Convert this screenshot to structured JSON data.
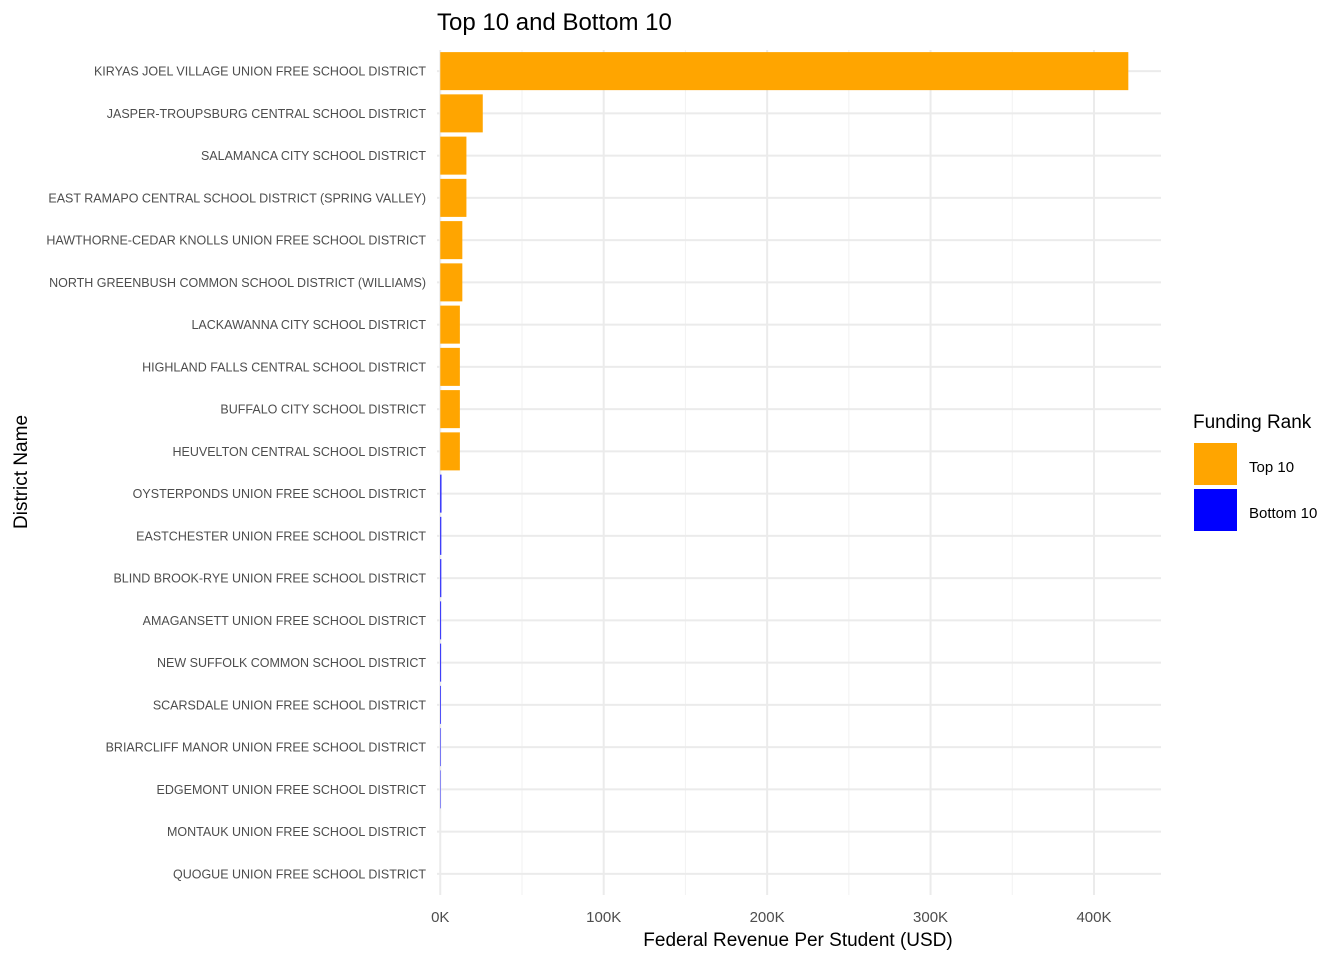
{
  "chart_data": {
    "type": "bar",
    "orientation": "horizontal",
    "title": "Top 10 and Bottom 10",
    "xlabel": "Federal Revenue Per Student (USD)",
    "ylabel": "District Name",
    "xlim": [
      -2000,
      441000
    ],
    "x_ticks": [
      0,
      100000,
      200000,
      300000,
      400000
    ],
    "x_tick_labels": [
      "0K",
      "100K",
      "200K",
      "300K",
      "400K"
    ],
    "grid": true,
    "legend": {
      "title": "Funding Rank",
      "position": "right",
      "entries": [
        {
          "label": "Top 10",
          "color": "#FFA500"
        },
        {
          "label": "Bottom 10",
          "color": "#0000FF"
        }
      ]
    },
    "categories": [
      "KIRYAS JOEL VILLAGE UNION FREE SCHOOL DISTRICT",
      "JASPER-TROUPSBURG CENTRAL SCHOOL DISTRICT",
      "SALAMANCA CITY SCHOOL DISTRICT",
      "EAST RAMAPO CENTRAL SCHOOL DISTRICT (SPRING VALLEY)",
      "HAWTHORNE-CEDAR KNOLLS UNION FREE SCHOOL DISTRICT",
      "NORTH GREENBUSH COMMON SCHOOL DISTRICT (WILLIAMS)",
      "LACKAWANNA CITY SCHOOL DISTRICT",
      "HIGHLAND FALLS CENTRAL SCHOOL DISTRICT",
      "BUFFALO CITY SCHOOL DISTRICT",
      "HEUVELTON CENTRAL SCHOOL DISTRICT",
      "OYSTERPONDS UNION FREE SCHOOL DISTRICT",
      "EASTCHESTER UNION FREE SCHOOL DISTRICT",
      "BLIND BROOK-RYE UNION FREE SCHOOL DISTRICT",
      "AMAGANSETT UNION FREE SCHOOL DISTRICT",
      "NEW SUFFOLK COMMON SCHOOL DISTRICT",
      "SCARSDALE UNION FREE SCHOOL DISTRICT",
      "BRIARCLIFF MANOR UNION FREE SCHOOL DISTRICT",
      "EDGEMONT UNION FREE SCHOOL DISTRICT",
      "MONTAUK UNION FREE SCHOOL DISTRICT",
      "QUOGUE UNION FREE SCHOOL DISTRICT"
    ],
    "values": [
      421000,
      26000,
      16000,
      16000,
      13500,
      13500,
      12000,
      12000,
      12000,
      12000,
      700,
      600,
      600,
      500,
      500,
      400,
      300,
      250,
      0,
      0
    ],
    "groups": [
      "Top 10",
      "Top 10",
      "Top 10",
      "Top 10",
      "Top 10",
      "Top 10",
      "Top 10",
      "Top 10",
      "Top 10",
      "Top 10",
      "Bottom 10",
      "Bottom 10",
      "Bottom 10",
      "Bottom 10",
      "Bottom 10",
      "Bottom 10",
      "Bottom 10",
      "Bottom 10",
      "Bottom 10",
      "Bottom 10"
    ]
  }
}
